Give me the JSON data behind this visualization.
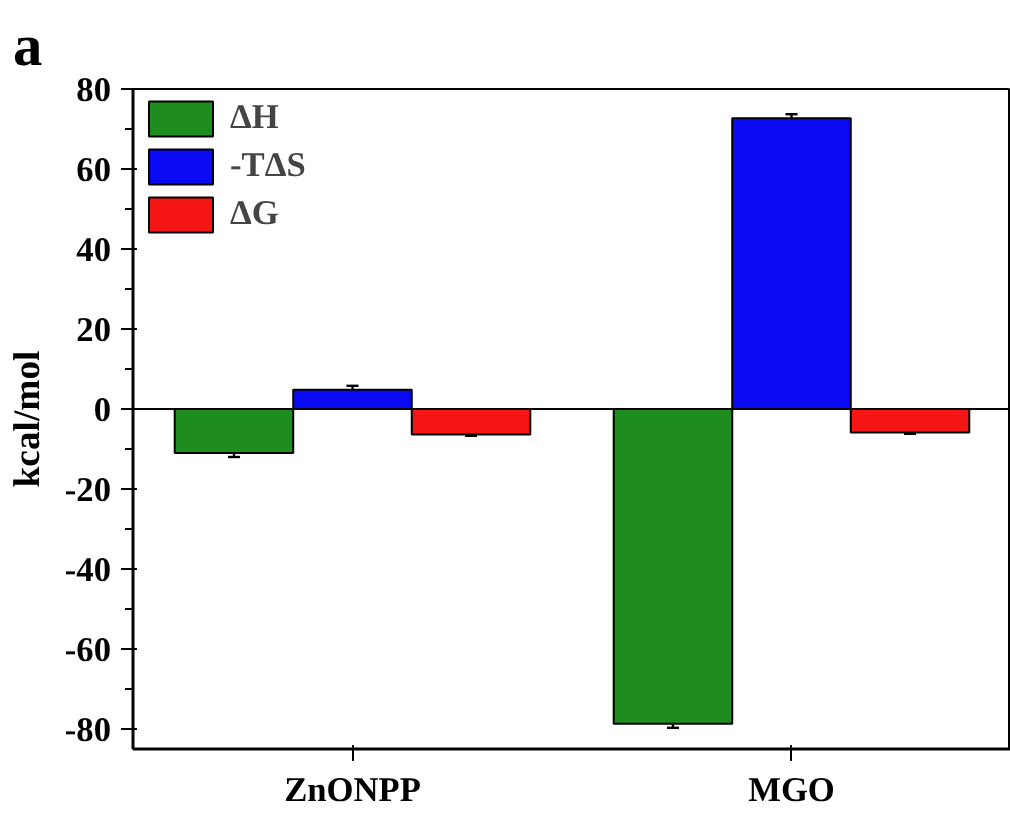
{
  "chart_data": {
    "type": "bar",
    "title": "a",
    "ylabel": "kcal/mol",
    "categories": [
      "ZnONPP",
      "MGO"
    ],
    "series": [
      {
        "name": "ΔH",
        "color": "#1e8c1e",
        "values": [
          -11,
          -78.7
        ],
        "errors": [
          1,
          1
        ]
      },
      {
        "name": "-TΔS",
        "color": "#0a0af5",
        "values": [
          4.8,
          72.7
        ],
        "errors": [
          1,
          1
        ]
      },
      {
        "name": "ΔG",
        "color": "#f51515",
        "values": [
          -6.4,
          -5.9
        ],
        "errors": [
          0.3,
          0.3
        ]
      }
    ],
    "ylim": [
      -85,
      80
    ],
    "yticks": [
      -80,
      -60,
      -40,
      -20,
      0,
      20,
      40,
      60,
      80
    ],
    "grid": false,
    "ref_lines": [
      {
        "axis": "y",
        "value": 0,
        "color": "#000000"
      }
    ],
    "legend": "top left"
  }
}
